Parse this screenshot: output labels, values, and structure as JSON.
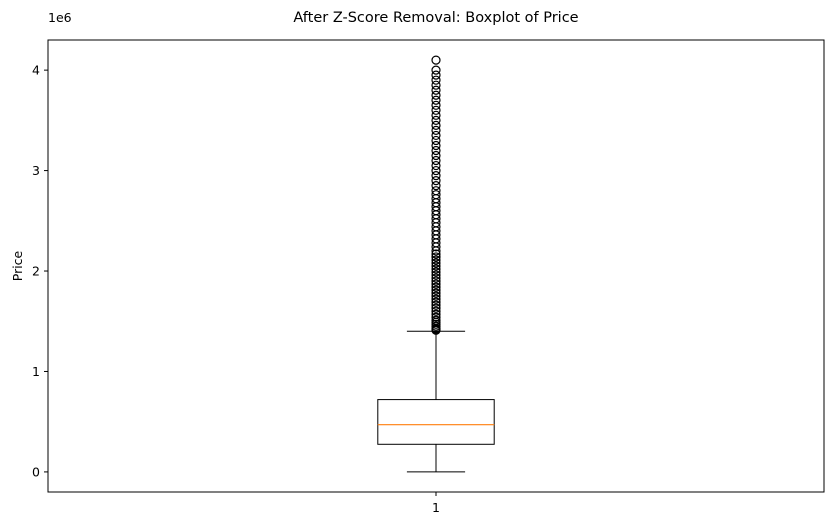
{
  "chart_data": {
    "type": "boxplot",
    "title": "After Z-Score Removal: Boxplot of Price",
    "xlabel": "",
    "ylabel": "Price",
    "y_offset_label": "1e6",
    "y_multiplier": 1000000,
    "ylim": [
      -200000,
      4300000
    ],
    "y_ticks": [
      0,
      1000000,
      2000000,
      3000000,
      4000000
    ],
    "y_tick_labels": [
      "0",
      "1",
      "2",
      "3",
      "4"
    ],
    "x_tick_labels": [
      "1"
    ],
    "grid": false,
    "boxes": [
      {
        "position": 1,
        "whisker_low": 0,
        "q1": 275000,
        "median": 470000,
        "q3": 720000,
        "whisker_high": 1400000,
        "outliers": [
          1410000,
          1420000,
          1430000,
          1450000,
          1470000,
          1490000,
          1510000,
          1540000,
          1570000,
          1600000,
          1630000,
          1660000,
          1690000,
          1720000,
          1750000,
          1780000,
          1810000,
          1840000,
          1870000,
          1900000,
          1930000,
          1960000,
          1990000,
          2020000,
          2050000,
          2080000,
          2110000,
          2140000,
          2170000,
          2200000,
          2240000,
          2280000,
          2320000,
          2360000,
          2400000,
          2440000,
          2480000,
          2520000,
          2560000,
          2600000,
          2640000,
          2680000,
          2720000,
          2760000,
          2800000,
          2850000,
          2900000,
          2950000,
          3000000,
          3050000,
          3100000,
          3150000,
          3200000,
          3250000,
          3300000,
          3350000,
          3400000,
          3450000,
          3500000,
          3550000,
          3600000,
          3650000,
          3700000,
          3750000,
          3800000,
          3850000,
          3900000,
          3950000,
          4000000,
          4100000
        ]
      }
    ],
    "colors": {
      "box": "#000000",
      "median": "#ff7f0e",
      "outlier": "#000000"
    }
  }
}
